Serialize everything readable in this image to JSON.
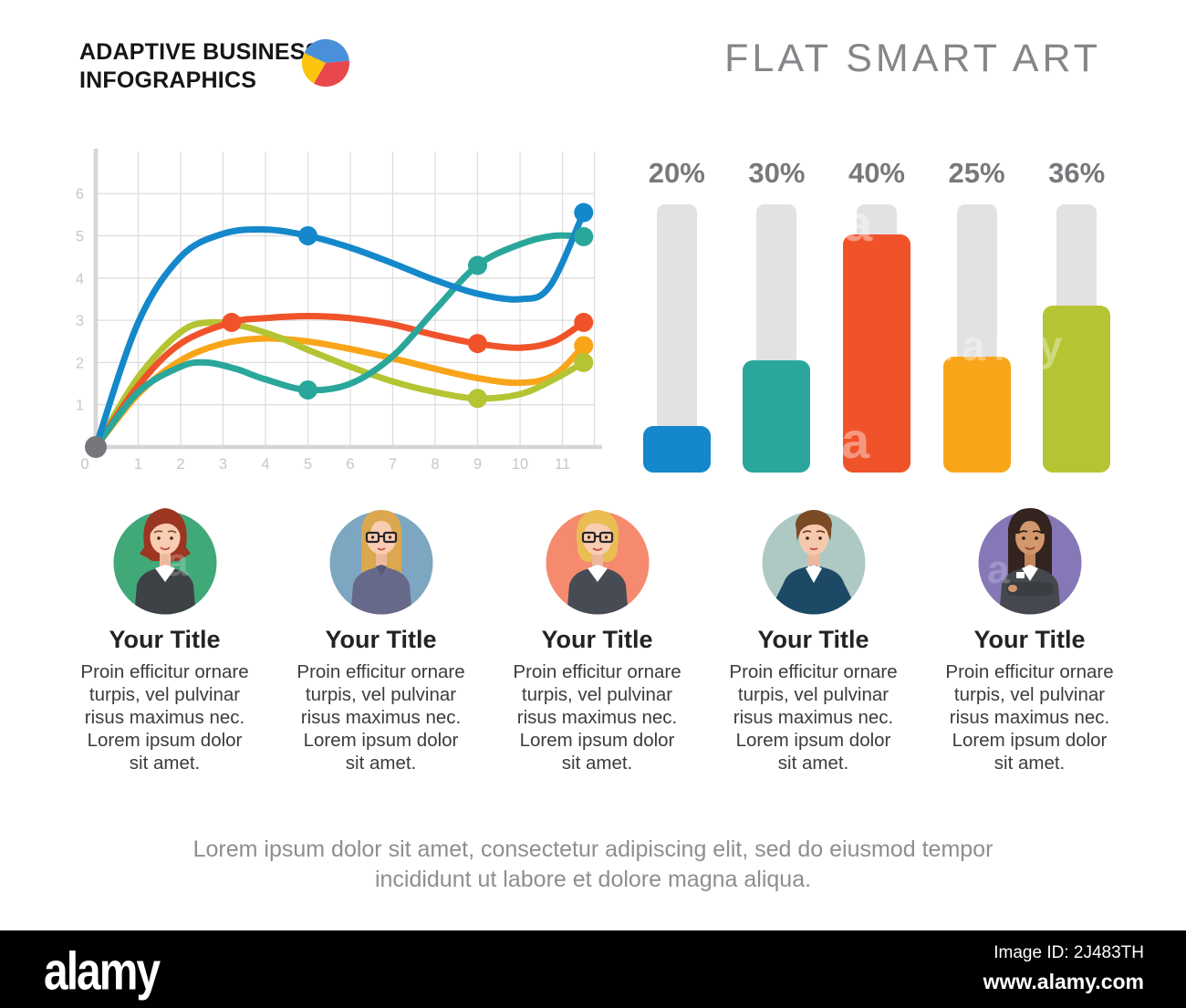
{
  "header": {
    "logo_line1": "ADAPTIVE BUSINESS",
    "logo_line2": "INFOGRAPHICS",
    "title": "FLAT SMART ART",
    "logo_colors": {
      "blue": "#4a90d9",
      "red": "#e8474b",
      "yellow": "#fcc40a"
    }
  },
  "chart_data": [
    {
      "type": "line",
      "title": "",
      "xlabel": "",
      "ylabel": "",
      "x_ticks": [
        "0",
        "1",
        "2",
        "3",
        "4",
        "5",
        "6",
        "7",
        "8",
        "9",
        "10",
        "11"
      ],
      "y_ticks": [
        "1",
        "2",
        "3",
        "4",
        "5",
        "6"
      ],
      "x_range": [
        0,
        12
      ],
      "y_range": [
        0,
        7
      ],
      "grid": true,
      "legend": "none",
      "grid_color": "#dedede",
      "axis_color": "#d5d5d5",
      "tick_label_color": "#c5c8ca",
      "origin_dot_color": "#76777a",
      "series": [
        {
          "name": "blue",
          "color": "#1488ca",
          "points": [
            [
              0,
              0
            ],
            [
              1,
              2.95
            ],
            [
              2,
              4.5
            ],
            [
              3,
              5.05
            ],
            [
              4,
              5.15
            ],
            [
              5,
              5.0
            ],
            [
              6,
              4.72
            ],
            [
              7,
              4.35
            ],
            [
              8,
              3.95
            ],
            [
              9,
              3.63
            ],
            [
              10,
              3.5
            ],
            [
              10.7,
              3.8
            ],
            [
              11.5,
              5.55
            ]
          ],
          "markers": [
            [
              5,
              5.0
            ],
            [
              11.5,
              5.55
            ]
          ]
        },
        {
          "name": "teal",
          "color": "#2aa79a",
          "points": [
            [
              0,
              0
            ],
            [
              1,
              1.3
            ],
            [
              2,
              1.9
            ],
            [
              2.6,
              2.0
            ],
            [
              3.3,
              1.85
            ],
            [
              4,
              1.6
            ],
            [
              5,
              1.35
            ],
            [
              6,
              1.5
            ],
            [
              7,
              2.15
            ],
            [
              8,
              3.25
            ],
            [
              9,
              4.3
            ],
            [
              10,
              4.8
            ],
            [
              10.8,
              5.0
            ],
            [
              11.5,
              4.98
            ]
          ],
          "markers": [
            [
              5,
              1.35
            ],
            [
              9,
              4.3
            ],
            [
              11.5,
              4.98
            ]
          ]
        },
        {
          "name": "red",
          "color": "#f05329",
          "points": [
            [
              0,
              0
            ],
            [
              1,
              1.45
            ],
            [
              2,
              2.45
            ],
            [
              3.2,
              2.95
            ],
            [
              4,
              3.05
            ],
            [
              5,
              3.1
            ],
            [
              6,
              3.05
            ],
            [
              7,
              2.9
            ],
            [
              8,
              2.65
            ],
            [
              9,
              2.45
            ],
            [
              10,
              2.35
            ],
            [
              10.8,
              2.5
            ],
            [
              11.5,
              2.95
            ]
          ],
          "markers": [
            [
              3.2,
              2.95
            ],
            [
              9,
              2.45
            ],
            [
              11.5,
              2.95
            ]
          ]
        },
        {
          "name": "orange",
          "color": "#f9a51a",
          "points": [
            [
              0,
              0
            ],
            [
              1,
              1.25
            ],
            [
              2,
              2.05
            ],
            [
              3,
              2.45
            ],
            [
              4,
              2.57
            ],
            [
              5,
              2.5
            ],
            [
              6,
              2.32
            ],
            [
              7,
              2.1
            ],
            [
              8,
              1.85
            ],
            [
              9,
              1.63
            ],
            [
              10,
              1.52
            ],
            [
              10.8,
              1.7
            ],
            [
              11.5,
              2.4
            ]
          ],
          "markers": [
            [
              11.5,
              2.4
            ]
          ]
        },
        {
          "name": "lime",
          "color": "#b5c433",
          "points": [
            [
              0,
              0
            ],
            [
              1,
              1.65
            ],
            [
              2,
              2.72
            ],
            [
              2.7,
              2.95
            ],
            [
              3.5,
              2.85
            ],
            [
              4.3,
              2.6
            ],
            [
              5,
              2.3
            ],
            [
              6,
              1.9
            ],
            [
              7,
              1.55
            ],
            [
              8,
              1.3
            ],
            [
              9,
              1.15
            ],
            [
              10,
              1.25
            ],
            [
              10.8,
              1.6
            ],
            [
              11.5,
              2.0
            ]
          ],
          "markers": [
            [
              9,
              1.15
            ],
            [
              11.5,
              2.0
            ]
          ]
        }
      ]
    },
    {
      "type": "bar",
      "categories": [
        "bar-1",
        "bar-2",
        "bar-3",
        "bar-4",
        "bar-5"
      ],
      "labels": [
        "20%",
        "30%",
        "40%",
        "25%",
        "36%"
      ],
      "values": [
        20,
        30,
        40,
        25,
        36
      ],
      "colors": [
        "#1488ca",
        "#2aa79a",
        "#f05329",
        "#f9a51a",
        "#b5c433"
      ],
      "track_color": "#e2e2e2",
      "label_color": "#77787b",
      "fill_fractions": [
        0.173,
        0.42,
        0.888,
        0.432,
        0.622
      ]
    }
  ],
  "profiles": [
    {
      "title": "Your Title",
      "description": "Proin efficitur ornare\nturpis, vel pulvinar\nrisus maximus nec.\nLorem ipsum dolor\nsit amet.",
      "circle_color": "#41a878"
    },
    {
      "title": "Your Title",
      "description": "Proin efficitur ornare\nturpis, vel pulvinar\nrisus maximus nec.\nLorem ipsum dolor\nsit amet.",
      "circle_color": "#7da6c1"
    },
    {
      "title": "Your Title",
      "description": "Proin efficitur ornare\nturpis, vel pulvinar\nrisus maximus nec.\nLorem ipsum dolor\nsit amet.",
      "circle_color": "#f58a6e"
    },
    {
      "title": "Your Title",
      "description": "Proin efficitur ornare\nturpis, vel pulvinar\nrisus maximus nec.\nLorem ipsum dolor\nsit amet.",
      "circle_color": "#aec9c3"
    },
    {
      "title": "Your Title",
      "description": "Proin efficitur ornare\nturpis, vel pulvinar\nrisus maximus nec.\nLorem ipsum dolor\nsit amet.",
      "circle_color": "#8677b7"
    }
  ],
  "footer_note": "Lorem ipsum dolor sit amet, consectetur adipiscing elit, sed do eiusmod tempor\nincididunt ut labore et dolore magna aliqua.",
  "watermark_bar": {
    "brand": "alamy",
    "image_id": "Image ID: 2J483TH",
    "url": "www.alamy.com"
  },
  "watermarks": [
    "a",
    "a",
    "alamy",
    "a",
    "a"
  ]
}
